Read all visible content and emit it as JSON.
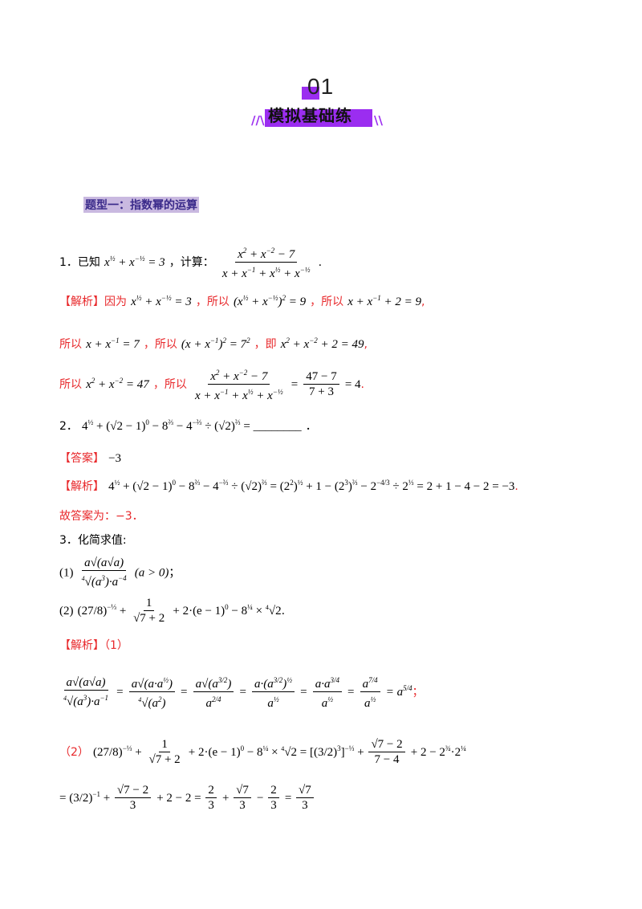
{
  "header": {
    "number": "01",
    "title": "模拟基础练",
    "deco_left": "//\\",
    "deco_right": "\\\\"
  },
  "section": {
    "title": "题型一：指数幂的运算"
  },
  "q1": {
    "prefix": "1．已知",
    "given_tail": "，计算：",
    "period": ".",
    "analysis_tag": "【解析】",
    "because": "因为",
    "so1": "，所以",
    "so2": "，所以",
    "line2_so": "所以",
    "line2_so2": "，所以",
    "line2_ie": "，即",
    "line3_so": "所以",
    "line3_so2": "，所以",
    "end": "."
  },
  "q2": {
    "prefix": "2．",
    "blank": "________",
    "period": "．",
    "answer_tag": "【答案】",
    "answer": "−3",
    "analysis_tag": "【解析】",
    "final": "故答案为：−3．"
  },
  "q3": {
    "prefix": "3．化简求值:",
    "part1": "(1)",
    "cond": "(a > 0)",
    "semicolon": "；",
    "part2": "(2)",
    "end": ".",
    "analysis_tag": "【解析】（1）",
    "part2_label": "（2）"
  }
}
